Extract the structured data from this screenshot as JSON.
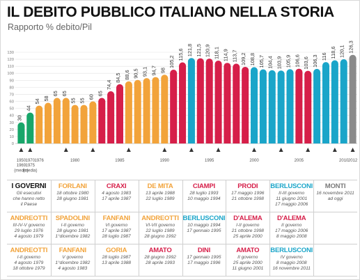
{
  "title": "IL DEBITO PUBBLICO ITALIANO NELLA STORIA",
  "subtitle": "Rapporto % debito/Pil",
  "colors": {
    "green": "#18a66a",
    "orange": "#f2a33a",
    "red": "#d61f49",
    "blue": "#1aa5c9",
    "grey": "#8a8a8a"
  },
  "chart_data": {
    "type": "bar",
    "ylim": [
      0,
      130
    ],
    "yticks": [
      "0",
      "10",
      "20",
      "30",
      "40",
      "50",
      "60",
      "70",
      "80",
      "90",
      "100",
      "110",
      "120",
      "130"
    ],
    "values": [
      30,
      44,
      54,
      58,
      65,
      65,
      55,
      55,
      60,
      65,
      74.4,
      84.5,
      88.6,
      90.5,
      93.1,
      94.7,
      98,
      105.2,
      115.6,
      121.8,
      121.5,
      120.9,
      118.1,
      114.9,
      113.7,
      109.2,
      108.8,
      105.7,
      104.4,
      103.9,
      105.9,
      106.6,
      103.6,
      106.3,
      116,
      118.6,
      120.1,
      126.3
    ],
    "labels": [
      "30",
      "44",
      "54",
      "58",
      "65",
      "65",
      "55",
      "55",
      "60",
      "65",
      "74,4",
      "84,5",
      "88,6",
      "90,5",
      "93,1",
      "94,7",
      "98",
      "105,2",
      "115,6",
      "121,8",
      "121,5",
      "120,9",
      "118,1",
      "114,9",
      "113,7",
      "109,2",
      "108,8",
      "105,7",
      "104,4",
      "103,9",
      "105,9",
      "106,6",
      "103,6",
      "106,3",
      "116",
      "118,6",
      "120,1",
      "126,3"
    ],
    "colors": [
      "green",
      "green",
      "orange",
      "orange",
      "orange",
      "orange",
      "orange",
      "orange",
      "orange",
      "red",
      "red",
      "red",
      "orange",
      "orange",
      "orange",
      "orange",
      "orange",
      "red",
      "red",
      "blue",
      "red",
      "red",
      "red",
      "red",
      "red",
      "red",
      "blue",
      "blue",
      "blue",
      "blue",
      "blue",
      "red",
      "red",
      "blue",
      "blue",
      "blue",
      "blue",
      "grey"
    ],
    "xticks": [
      {
        "bar": 0,
        "text": "1950\n1969\n(media)"
      },
      {
        "bar": 1,
        "text": "1970\n1975\n(media)"
      },
      {
        "bar": 2,
        "text": "1976"
      },
      {
        "bar": 6,
        "text": "1980"
      },
      {
        "bar": 11,
        "text": "1985"
      },
      {
        "bar": 16,
        "text": "1990"
      },
      {
        "bar": 21,
        "text": "1995"
      },
      {
        "bar": 26,
        "text": "2000"
      },
      {
        "bar": 31,
        "text": "2005"
      },
      {
        "bar": 36,
        "text": "2010"
      },
      {
        "bar": 37,
        "text": "2012"
      }
    ],
    "markers": [
      0,
      1,
      5,
      8,
      12,
      16,
      19,
      22,
      26,
      29,
      32,
      35,
      37
    ]
  },
  "governments": {
    "rows": [
      [
        {
          "c": "head",
          "name": "I GOVERNI",
          "lines": [
            "Gli esecutivi",
            "che hanno retto",
            "il Paese"
          ]
        },
        {
          "c": "orange",
          "name": "FORLANI",
          "lines": [
            "18 ottobre 1980",
            "28 giugno 1981"
          ]
        },
        {
          "c": "red",
          "name": "CRAXI",
          "lines": [
            "4 agosto 1983",
            "17 aprile 1987"
          ]
        },
        {
          "c": "orange",
          "name": "DE MITA",
          "lines": [
            "13 aprile 1988",
            "22 luglio 1989"
          ]
        },
        {
          "c": "red",
          "name": "CIAMPI",
          "lines": [
            "28 luglio 1993",
            "10 maggio 1994"
          ]
        },
        {
          "c": "red",
          "name": "PRODI",
          "lines": [
            "17 maggio 1996",
            "21 ottobre 1998"
          ]
        },
        {
          "c": "blue",
          "name": "BERLUSCONI",
          "lines": [
            "II-III governo",
            "11 giugno 2001",
            "17 maggio 2006"
          ]
        },
        {
          "c": "grey",
          "name": "MONTI",
          "lines": [
            "16 novembre 2011",
            "ad oggi"
          ]
        }
      ],
      [
        {
          "c": "orange",
          "name": "ANDREOTTI",
          "lines": [
            "III-IV-V governo",
            "29 luglio 1976",
            "4 agosto 1979"
          ]
        },
        {
          "c": "orange",
          "name": "SPADOLINI",
          "lines": [
            "I-II governo",
            "28 giugno 1981",
            "1°dicembre 1982"
          ]
        },
        {
          "c": "orange",
          "name": "FANFANI",
          "lines": [
            "VI governo",
            "17 aprile 1987",
            "28 luglio 1987"
          ]
        },
        {
          "c": "orange",
          "name": "ANDREOTTI",
          "lines": [
            "VI-VII governo",
            "22 luglio 1989",
            "28 giugno 1992"
          ]
        },
        {
          "c": "blue",
          "name": "BERLUSCONI",
          "lines": [
            "10 maggio 1994",
            "17 gennaio 1995"
          ]
        },
        {
          "c": "red",
          "name": "D'ALEMA",
          "lines": [
            "I-II governo",
            "21 ottobre 1998",
            "25 aprile 2000"
          ]
        },
        {
          "c": "red",
          "name": "D'ALEMA",
          "lines": [
            "II governo",
            "17 maggio 2006",
            "8 maggio 2008"
          ]
        }
      ],
      [
        {
          "c": "orange",
          "name": "ANDREOTTI",
          "lines": [
            "I-II governo",
            "4 agosto 1979",
            "18 ottobre 1979"
          ]
        },
        {
          "c": "orange",
          "name": "FANFANI",
          "lines": [
            "V governo",
            "1°dicembre 1982",
            "4 agosto 1983"
          ]
        },
        {
          "c": "orange",
          "name": "GORIA",
          "lines": [
            "28 luglio 1987",
            "13 aprile 1988"
          ]
        },
        {
          "c": "red",
          "name": "AMATO",
          "lines": [
            "28 giugno 1992",
            "28 aprile 1993"
          ]
        },
        {
          "c": "red",
          "name": "DINI",
          "lines": [
            "17 gennaio 1995",
            "17 maggio 1996"
          ]
        },
        {
          "c": "red",
          "name": "AMATO",
          "lines": [
            "II governo",
            "25 aprile 2000",
            "11 giugno 2001"
          ]
        },
        {
          "c": "blue",
          "name": "BERLUSCONI",
          "lines": [
            "IV governo",
            "8 maggio 2008",
            "16 novembre 2011"
          ]
        }
      ]
    ]
  }
}
